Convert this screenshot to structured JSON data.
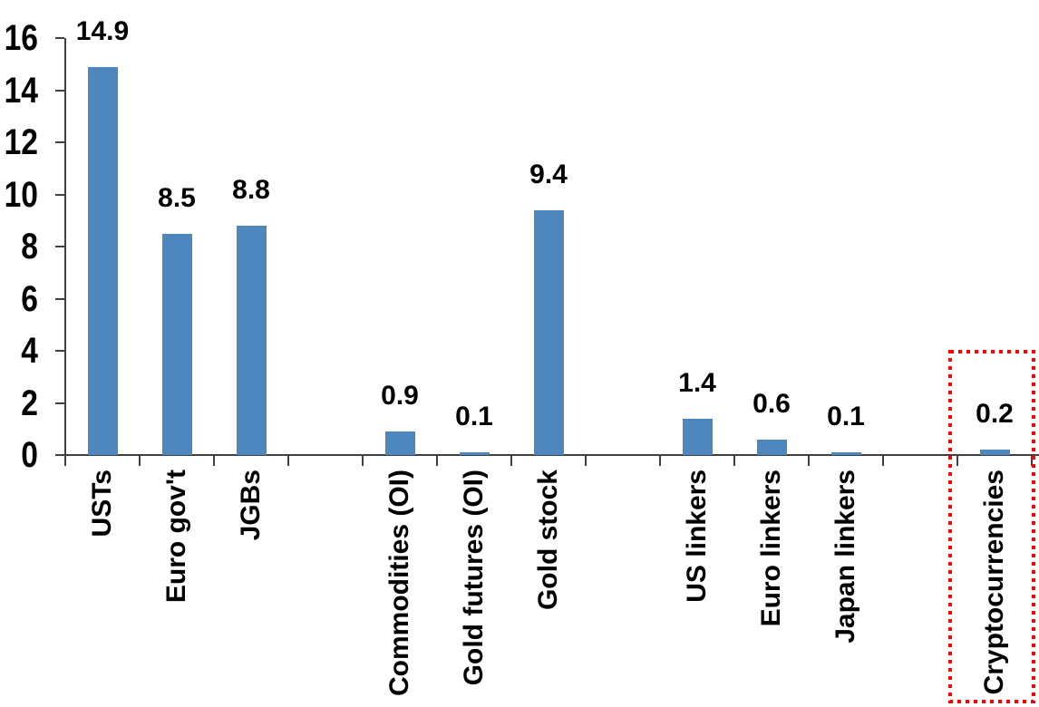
{
  "chart_data": {
    "type": "bar",
    "categories": [
      "USTs",
      "Euro gov't",
      "JGBs",
      "",
      "Commodities (OI)",
      "Gold futures (OI)",
      "Gold stock",
      "",
      "US linkers",
      "Euro linkers",
      "Japan linkers",
      "",
      "Cryptocurrencies"
    ],
    "values": [
      14.9,
      8.5,
      8.8,
      null,
      0.9,
      0.1,
      9.4,
      null,
      1.4,
      0.6,
      0.1,
      null,
      0.2
    ],
    "value_labels": [
      "14.9",
      "8.5",
      "8.8",
      null,
      "0.9",
      "0.1",
      "9.4",
      null,
      "1.4",
      "0.6",
      "0.1",
      null,
      "0.2"
    ],
    "title": "",
    "xlabel": "",
    "ylabel": "",
    "ylim": [
      0,
      16
    ],
    "yticks": [
      "0",
      "2",
      "4",
      "6",
      "8",
      "10",
      "12",
      "14",
      "16"
    ],
    "grid": false,
    "legend": false,
    "bar_color": "#4E86BE",
    "axis_color": "#404040",
    "text_color": "#000000",
    "highlight": {
      "category": "Cryptocurrencies",
      "style": "red-dotted-box",
      "color": "#FF0000"
    }
  }
}
